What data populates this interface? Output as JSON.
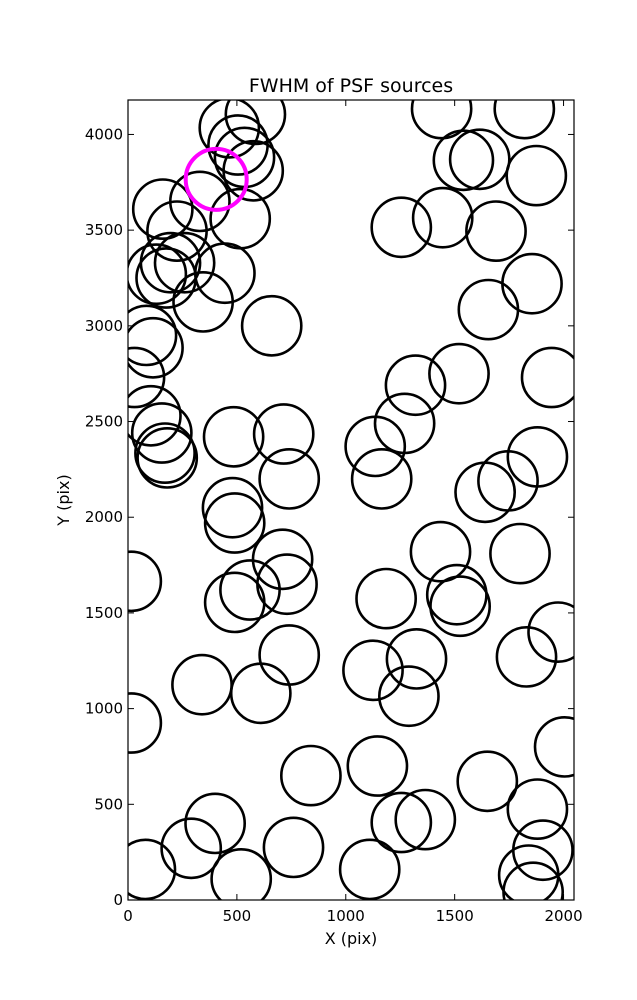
{
  "chart_data": {
    "type": "scatter",
    "title": "FWHM of PSF sources",
    "xlabel": "X (pix)",
    "ylabel": "Y (pix)",
    "xlim": [
      0,
      2048
    ],
    "ylim": [
      0,
      4180
    ],
    "xticks": [
      0,
      500,
      1000,
      1500,
      2000
    ],
    "yticks": [
      0,
      500,
      1000,
      1500,
      2000,
      2500,
      3000,
      3500,
      4000
    ],
    "grid": false,
    "marker": "open circle",
    "series": [
      {
        "color": "#000000",
        "radius": 136,
        "points": [
          {
            "x": 465,
            "y": 4035
          },
          {
            "x": 585,
            "y": 4105
          },
          {
            "x": 505,
            "y": 3945
          },
          {
            "x": 535,
            "y": 3880
          },
          {
            "x": 575,
            "y": 3810
          },
          {
            "x": 330,
            "y": 3650
          },
          {
            "x": 160,
            "y": 3610
          },
          {
            "x": 515,
            "y": 3560
          },
          {
            "x": 225,
            "y": 3495
          },
          {
            "x": 260,
            "y": 3330
          },
          {
            "x": 195,
            "y": 3330
          },
          {
            "x": 130,
            "y": 3270
          },
          {
            "x": 175,
            "y": 3250
          },
          {
            "x": 445,
            "y": 3275
          },
          {
            "x": 345,
            "y": 3125
          },
          {
            "x": 660,
            "y": 3000
          },
          {
            "x": 85,
            "y": 2950
          },
          {
            "x": 115,
            "y": 2885
          },
          {
            "x": 30,
            "y": 2730
          },
          {
            "x": 105,
            "y": 2530
          },
          {
            "x": 155,
            "y": 2440
          },
          {
            "x": 170,
            "y": 2335
          },
          {
            "x": 180,
            "y": 2310
          },
          {
            "x": 485,
            "y": 2420
          },
          {
            "x": 715,
            "y": 2435
          },
          {
            "x": 740,
            "y": 2200
          },
          {
            "x": 480,
            "y": 2050
          },
          {
            "x": 490,
            "y": 1970
          },
          {
            "x": 710,
            "y": 1780
          },
          {
            "x": 730,
            "y": 1650
          },
          {
            "x": 560,
            "y": 1620
          },
          {
            "x": 490,
            "y": 1555
          },
          {
            "x": 15,
            "y": 1665
          },
          {
            "x": 740,
            "y": 1280
          },
          {
            "x": 340,
            "y": 1125
          },
          {
            "x": 610,
            "y": 1080
          },
          {
            "x": 15,
            "y": 925
          },
          {
            "x": 840,
            "y": 650
          },
          {
            "x": 400,
            "y": 400
          },
          {
            "x": 290,
            "y": 270
          },
          {
            "x": 80,
            "y": 160
          },
          {
            "x": 520,
            "y": 110
          },
          {
            "x": 760,
            "y": 275
          },
          {
            "x": 1145,
            "y": 700
          },
          {
            "x": 1255,
            "y": 405
          },
          {
            "x": 1365,
            "y": 420
          },
          {
            "x": 1110,
            "y": 160
          },
          {
            "x": 1650,
            "y": 620
          },
          {
            "x": 1880,
            "y": 475
          },
          {
            "x": 1905,
            "y": 260
          },
          {
            "x": 1840,
            "y": 130
          },
          {
            "x": 1860,
            "y": 40
          },
          {
            "x": 2005,
            "y": 800
          },
          {
            "x": 1125,
            "y": 1200
          },
          {
            "x": 1325,
            "y": 1260
          },
          {
            "x": 1290,
            "y": 1065
          },
          {
            "x": 1185,
            "y": 1575
          },
          {
            "x": 1510,
            "y": 1595
          },
          {
            "x": 1525,
            "y": 1535
          },
          {
            "x": 1830,
            "y": 1270
          },
          {
            "x": 1975,
            "y": 1400
          },
          {
            "x": 1435,
            "y": 1820
          },
          {
            "x": 1800,
            "y": 1810
          },
          {
            "x": 1135,
            "y": 2370
          },
          {
            "x": 1165,
            "y": 2200
          },
          {
            "x": 1270,
            "y": 2490
          },
          {
            "x": 1320,
            "y": 2690
          },
          {
            "x": 1520,
            "y": 2750
          },
          {
            "x": 1640,
            "y": 2130
          },
          {
            "x": 1745,
            "y": 2190
          },
          {
            "x": 1880,
            "y": 2315
          },
          {
            "x": 1945,
            "y": 2730
          },
          {
            "x": 1655,
            "y": 3085
          },
          {
            "x": 1855,
            "y": 3220
          },
          {
            "x": 1255,
            "y": 3515
          },
          {
            "x": 1445,
            "y": 3565
          },
          {
            "x": 1690,
            "y": 3495
          },
          {
            "x": 1875,
            "y": 3785
          },
          {
            "x": 1540,
            "y": 3865
          },
          {
            "x": 1615,
            "y": 3870
          },
          {
            "x": 1440,
            "y": 4135
          },
          {
            "x": 1820,
            "y": 4135
          }
        ]
      },
      {
        "color": "#ff00ff",
        "radius": 140,
        "points": [
          {
            "x": 405,
            "y": 3765
          }
        ]
      }
    ]
  }
}
